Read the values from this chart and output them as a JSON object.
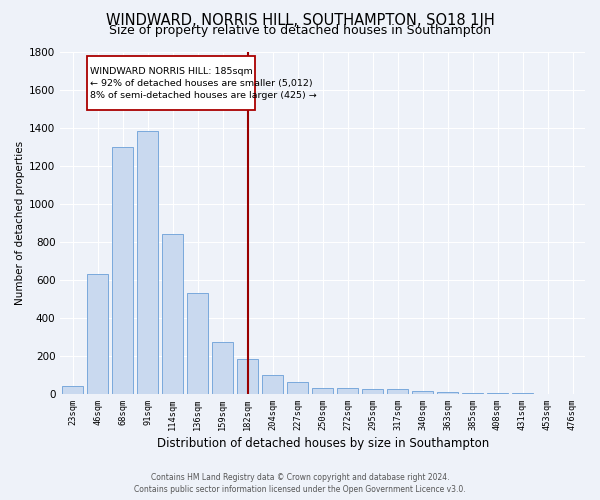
{
  "title": "WINDWARD, NORRIS HILL, SOUTHAMPTON, SO18 1JH",
  "subtitle": "Size of property relative to detached houses in Southampton",
  "xlabel": "Distribution of detached houses by size in Southampton",
  "ylabel": "Number of detached properties",
  "categories": [
    "23sqm",
    "46sqm",
    "68sqm",
    "91sqm",
    "114sqm",
    "136sqm",
    "159sqm",
    "182sqm",
    "204sqm",
    "227sqm",
    "250sqm",
    "272sqm",
    "295sqm",
    "317sqm",
    "340sqm",
    "363sqm",
    "385sqm",
    "408sqm",
    "431sqm",
    "453sqm",
    "476sqm"
  ],
  "values": [
    40,
    630,
    1300,
    1380,
    840,
    530,
    270,
    180,
    100,
    60,
    30,
    30,
    25,
    25,
    15,
    10,
    5,
    3,
    2,
    1,
    1
  ],
  "bar_color": "#c9d9ef",
  "bar_edge_color": "#6a9fd8",
  "red_line_x": 7,
  "annotation_title": "WINDWARD NORRIS HILL: 185sqm",
  "annotation_line1": "← 92% of detached houses are smaller (5,012)",
  "annotation_line2": "8% of semi-detached houses are larger (425) →",
  "footer1": "Contains HM Land Registry data © Crown copyright and database right 2024.",
  "footer2": "Contains public sector information licensed under the Open Government Licence v3.0.",
  "ylim": [
    0,
    1800
  ],
  "yticks": [
    0,
    200,
    400,
    600,
    800,
    1000,
    1200,
    1400,
    1600,
    1800
  ],
  "bg_color": "#eef2f9",
  "grid_color": "#ffffff",
  "title_fontsize": 10.5,
  "subtitle_fontsize": 9
}
